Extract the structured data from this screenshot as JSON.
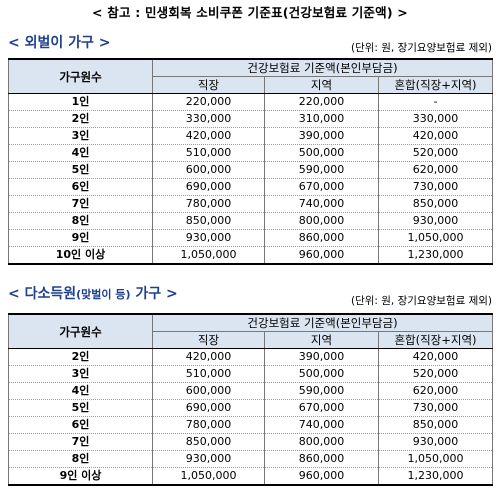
{
  "header": {
    "title": "< 참고 : 민생회복 소비쿠폰 기준표(건강보험료 기준액) >"
  },
  "single_section": {
    "title": "< 외벌이 가구 >",
    "note": "(단위: 원, 장기요양보험료 제외)",
    "col_household": "가구원수",
    "col_group": "건강보험료 기준액(본인부담금)",
    "col_sub": [
      "직장",
      "지역",
      "혼합(직장+지역)"
    ],
    "rows": [
      {
        "size": "1인",
        "v1": "220,000",
        "v2": "220,000",
        "v3": "-"
      },
      {
        "size": "2인",
        "v1": "330,000",
        "v2": "310,000",
        "v3": "330,000"
      },
      {
        "size": "3인",
        "v1": "420,000",
        "v2": "390,000",
        "v3": "420,000"
      },
      {
        "size": "4인",
        "v1": "510,000",
        "v2": "500,000",
        "v3": "520,000"
      },
      {
        "size": "5인",
        "v1": "600,000",
        "v2": "590,000",
        "v3": "620,000"
      },
      {
        "size": "6인",
        "v1": "690,000",
        "v2": "670,000",
        "v3": "730,000"
      },
      {
        "size": "7인",
        "v1": "780,000",
        "v2": "740,000",
        "v3": "850,000"
      },
      {
        "size": "8인",
        "v1": "850,000",
        "v2": "800,000",
        "v3": "930,000"
      },
      {
        "size": "9인",
        "v1": "930,000",
        "v2": "860,000",
        "v3": "1,050,000"
      },
      {
        "size": "10인 이상",
        "v1": "1,050,000",
        "v2": "960,000",
        "v3": "1,230,000"
      }
    ]
  },
  "multi_section": {
    "title_main": "< 다소득원",
    "title_small": "(맞벌이 등)",
    "title_end": "가구 >",
    "note": "(단위: 원, 장기요양보험료 제외)",
    "col_household": "가구원수",
    "col_group": "건강보험료 기준액(본인부담금)",
    "col_sub": [
      "직장",
      "지역",
      "혼합(직장+지역)"
    ],
    "rows": [
      {
        "size": "2인",
        "v1": "420,000",
        "v2": "390,000",
        "v3": "420,000"
      },
      {
        "size": "3인",
        "v1": "510,000",
        "v2": "500,000",
        "v3": "520,000"
      },
      {
        "size": "4인",
        "v1": "600,000",
        "v2": "590,000",
        "v3": "620,000"
      },
      {
        "size": "5인",
        "v1": "690,000",
        "v2": "670,000",
        "v3": "730,000"
      },
      {
        "size": "6인",
        "v1": "780,000",
        "v2": "740,000",
        "v3": "850,000"
      },
      {
        "size": "7인",
        "v1": "850,000",
        "v2": "800,000",
        "v3": "930,000"
      },
      {
        "size": "8인",
        "v1": "930,000",
        "v2": "860,000",
        "v3": "1,050,000"
      },
      {
        "size": "9인 이상",
        "v1": "1,050,000",
        "v2": "960,000",
        "v3": "1,230,000"
      }
    ]
  },
  "colors": {
    "header_bg": "#dbe5f1",
    "section_title": "#1f3f8f"
  }
}
